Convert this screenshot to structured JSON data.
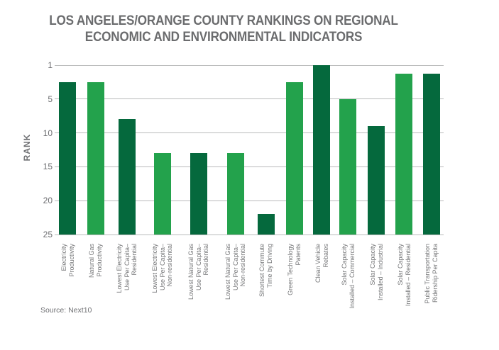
{
  "title": {
    "line1": "LOS ANGELES/ORANGE COUNTY RANKINGS ON REGIONAL",
    "line2": "ECONOMIC AND ENVIRONMENTAL INDICATORS"
  },
  "source": "Source: Next10",
  "chart_data": {
    "type": "bar",
    "title": "LOS ANGELES/ORANGE COUNTY RANKINGS ON REGIONAL ECONOMIC AND ENVIRONMENTAL INDICATORS",
    "xlabel": "",
    "ylabel": "RANK",
    "y_axis": {
      "label": "RANK",
      "ticks": [
        1,
        5,
        10,
        15,
        20,
        25
      ],
      "inverted": true,
      "range": [
        1,
        25
      ],
      "tick_spacing": "equal",
      "grid": "horizontal"
    },
    "legend": "none",
    "categories": [
      "Electricity Productivity",
      "Natural Gas Productivity",
      "Lowest Electricity Use Per Capita– Residential",
      "Lowest Electricity Use Per Capita– Non-residential",
      "Lowest Natural Gas Use Per Capita– Residential",
      "Lowest Natural Gas Use Per Capita– Non-residential",
      "Shortest Commute Time by Driving",
      "Green Technology Patents",
      "Clean Vehicle Rebates",
      "Solar Capacity Installed – Commercial",
      "Solar Capacity Installed – Industrial",
      "Solar Capacity Installed – Residential",
      "Public Transportation Ridership Per Capita"
    ],
    "category_lines": [
      [
        "Electricity",
        "Productivity"
      ],
      [
        "Natural Gas",
        "Productivity"
      ],
      [
        "Lowest Electricity",
        "Use Per Capita–",
        "Residential"
      ],
      [
        "Lowest Electricity",
        "Use Per Capita–",
        "Non-residential"
      ],
      [
        "Lowest Natural Gas",
        "Use Per Capita–",
        "Residential"
      ],
      [
        "Lowest Natural Gas",
        "Use Per Capita–",
        "Non-residential"
      ],
      [
        "Shortest Commute",
        "Time by Driving"
      ],
      [
        "Green Technology",
        "Patents"
      ],
      [
        "Clean Vehicle",
        "Rebates"
      ],
      [
        "Solar Capacity",
        "Installed – Commercial"
      ],
      [
        "Solar Capacity",
        "Installed – Industrial"
      ],
      [
        "Solar Capacity",
        "Installed – Residential"
      ],
      [
        "Public Transportation",
        "Ridership Per Capita"
      ]
    ],
    "values": [
      3,
      3,
      8,
      13,
      13,
      13,
      22,
      3,
      1,
      5,
      9,
      2,
      2
    ],
    "colors": {
      "dark_green": "#05693D",
      "light_green": "#23A24C",
      "text_gray": "#6d6e71",
      "gridline_gray": "#b9babb"
    },
    "bar_color_pattern": "alternating dark_green / light_green starting with dark_green"
  }
}
